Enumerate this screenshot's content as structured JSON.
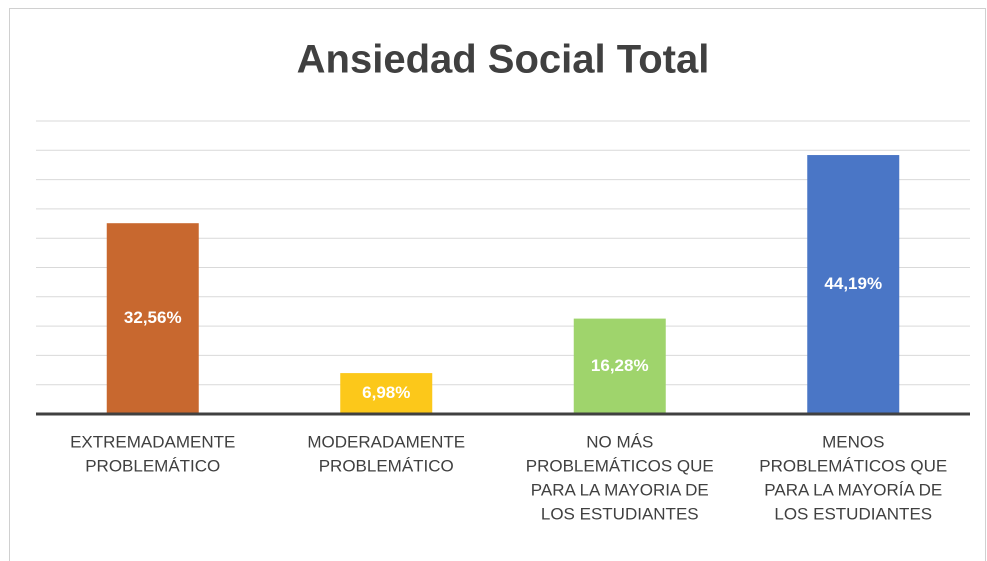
{
  "chart_data": {
    "type": "bar",
    "title": "Ansiedad Social Total",
    "categories": [
      [
        "EXTREMADAMENTE",
        "PROBLEMÁTICO"
      ],
      [
        "MODERADAMENTE",
        "PROBLEMÁTICO"
      ],
      [
        "NO MÁS",
        "PROBLEMÁTICOS QUE",
        "PARA LA MAYORIA DE",
        "LOS ESTUDIANTES"
      ],
      [
        "MENOS",
        "PROBLEMÁTICOS QUE",
        "PARA LA MAYORÍA DE",
        "LOS ESTUDIANTES"
      ]
    ],
    "values": [
      32.56,
      6.98,
      16.28,
      44.19
    ],
    "value_labels": [
      "32,56%",
      "6,98%",
      "16,28%",
      "44,19%"
    ],
    "colors": [
      "#c8682f",
      "#fcc81a",
      "#9fd46c",
      "#4a76c6"
    ],
    "ylim": [
      0,
      50
    ],
    "yticks": [
      0,
      5,
      10,
      15,
      20,
      25,
      30,
      35,
      40,
      45,
      50
    ],
    "grid": true
  }
}
